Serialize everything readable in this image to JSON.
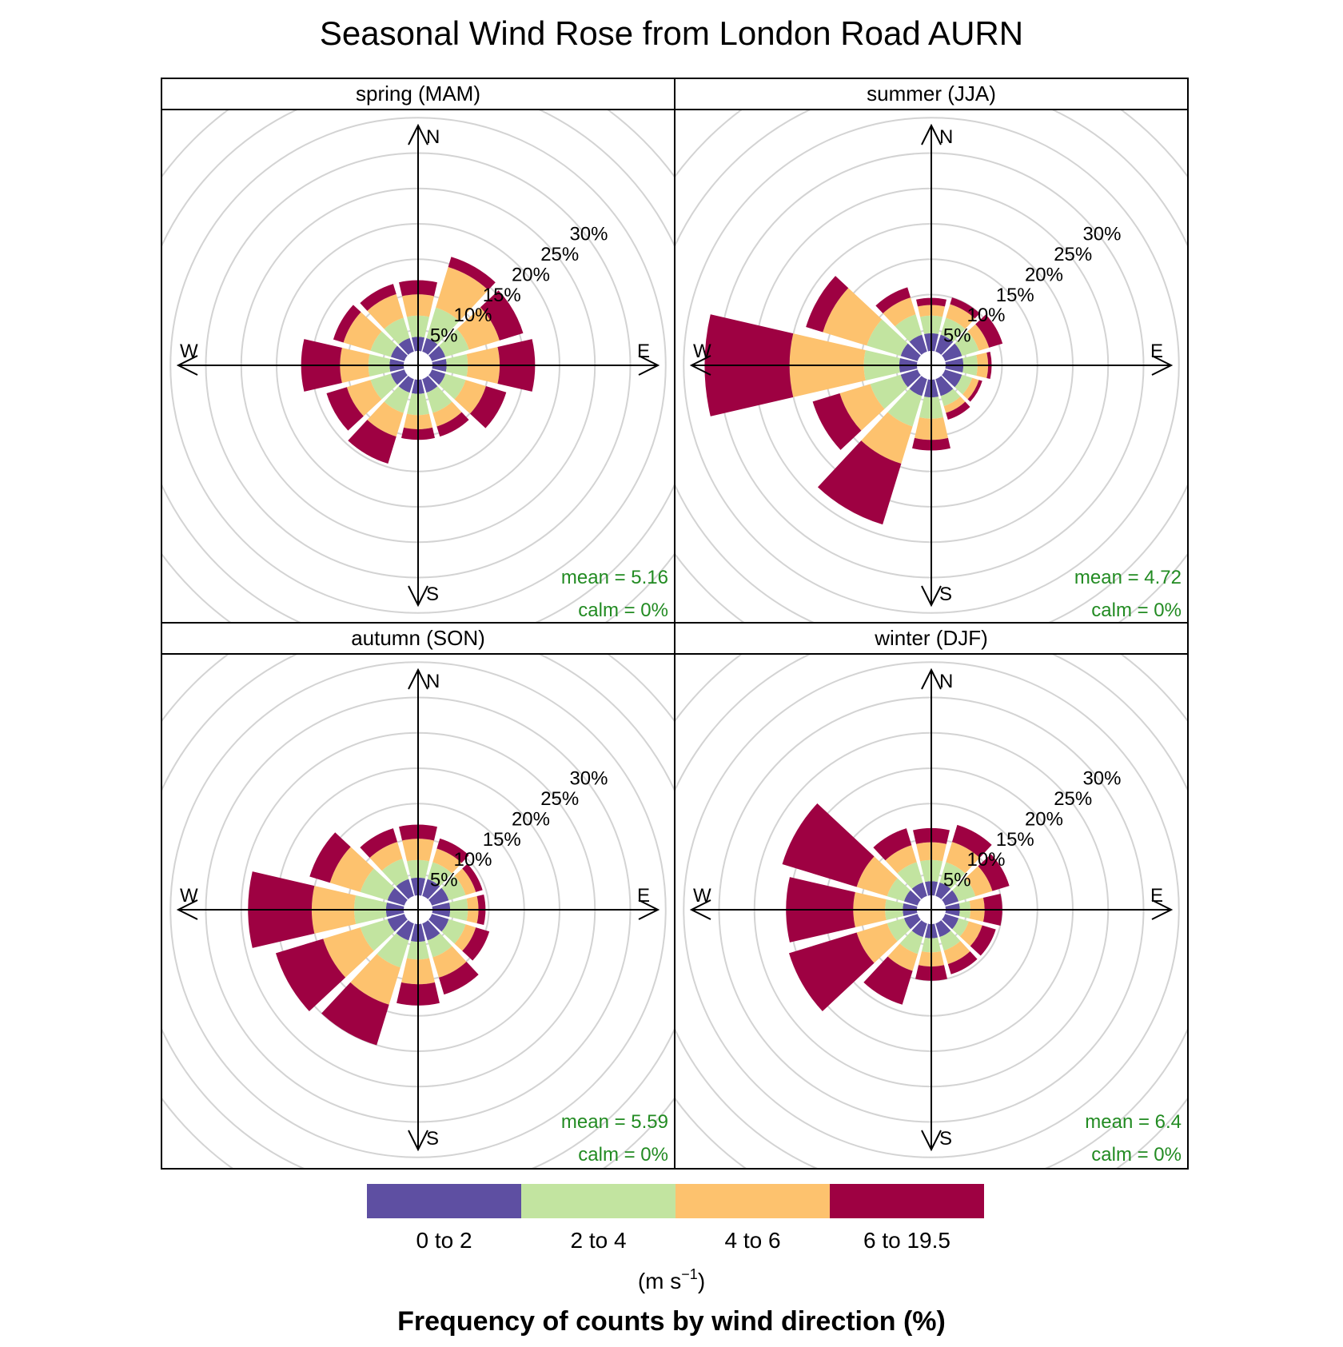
{
  "title": "Seasonal Wind Rose from London Road AURN",
  "compass": {
    "n": "N",
    "e": "E",
    "s": "S",
    "w": "W"
  },
  "ring_labels": [
    "5%",
    "10%",
    "15%",
    "20%",
    "25%",
    "30%"
  ],
  "legend": {
    "labels": [
      "0 to 2",
      "2 to 4",
      "4 to 6",
      "6 to 19.5"
    ],
    "colors": [
      "#5E4FA2",
      "#C2E4A0",
      "#FDC26E",
      "#9E0142"
    ],
    "units_main": "(m s",
    "units_sup": "−1",
    "units_close": ")",
    "caption": "Frequency of counts by wind direction (%)"
  },
  "chart_data": {
    "type": "wind_rose",
    "directions_deg": [
      0,
      30,
      60,
      90,
      120,
      150,
      180,
      210,
      240,
      270,
      300,
      330
    ],
    "radial_unit": "%",
    "radial_ticks": [
      5,
      10,
      15,
      20,
      25,
      30
    ],
    "speed_bins": [
      "0 to 2",
      "2 to 4",
      "4 to 6",
      "6 to 19.5"
    ],
    "grid": true,
    "panels": [
      {
        "name": "spring (MAM)",
        "mean": "mean = 5.16",
        "calm": "calm = 0%",
        "cumulative": [
          [
            2.0,
            5.0,
            8.0,
            10.0
          ],
          [
            2.0,
            6.5,
            12.5,
            14.0
          ],
          [
            2.0,
            5.5,
            10.0,
            13.5
          ],
          [
            2.0,
            5.0,
            9.5,
            14.5
          ],
          [
            2.0,
            5.0,
            8.0,
            11.0
          ],
          [
            2.0,
            5.0,
            7.0,
            8.5
          ],
          [
            2.0,
            5.0,
            7.0,
            8.5
          ],
          [
            2.0,
            5.0,
            8.5,
            12.5
          ],
          [
            2.0,
            5.0,
            8.5,
            11.5
          ],
          [
            2.0,
            5.0,
            9.0,
            14.5
          ],
          [
            2.0,
            5.0,
            9.0,
            10.5
          ],
          [
            2.0,
            5.0,
            8.5,
            10.0
          ]
        ]
      },
      {
        "name": "summer (JJA)",
        "mean": "mean = 4.72",
        "calm": "calm = 0%",
        "cumulative": [
          [
            2.5,
            5.0,
            6.5,
            7.5
          ],
          [
            2.5,
            5.0,
            7.0,
            8.0
          ],
          [
            2.5,
            5.0,
            6.5,
            8.5
          ],
          [
            2.5,
            4.5,
            6.0,
            6.5
          ],
          [
            2.5,
            4.0,
            5.0,
            5.5
          ],
          [
            2.5,
            4.0,
            5.0,
            6.0
          ],
          [
            2.5,
            5.5,
            8.5,
            10.0
          ],
          [
            2.5,
            7.0,
            12.5,
            21.5
          ],
          [
            2.5,
            7.0,
            11.5,
            15.5
          ],
          [
            2.5,
            7.5,
            18.0,
            30.0
          ],
          [
            2.5,
            7.5,
            14.0,
            16.5
          ],
          [
            2.5,
            5.5,
            8.0,
            9.5
          ]
        ]
      },
      {
        "name": "autumn (SON)",
        "mean": "mean = 5.59",
        "calm": "calm = 0%",
        "cumulative": [
          [
            2.5,
            5.0,
            8.0,
            10.0
          ],
          [
            2.5,
            5.0,
            7.0,
            8.5
          ],
          [
            2.5,
            5.0,
            6.5,
            7.5
          ],
          [
            2.5,
            5.0,
            6.5,
            7.5
          ],
          [
            2.5,
            5.0,
            6.5,
            8.5
          ],
          [
            2.5,
            5.0,
            8.0,
            10.5
          ],
          [
            2.5,
            5.0,
            8.5,
            11.5
          ],
          [
            2.5,
            6.5,
            12.0,
            18.0
          ],
          [
            2.5,
            6.5,
            12.0,
            19.0
          ],
          [
            2.5,
            7.0,
            13.0,
            22.0
          ],
          [
            2.5,
            6.5,
            11.0,
            14.0
          ],
          [
            2.5,
            5.5,
            8.0,
            10.0
          ]
        ]
      },
      {
        "name": "winter (DJF)",
        "mean": "mean = 6.4",
        "calm": "calm = 0%",
        "cumulative": [
          [
            2.0,
            5.0,
            7.5,
            9.5
          ],
          [
            2.0,
            5.0,
            8.0,
            10.5
          ],
          [
            2.0,
            4.5,
            7.0,
            9.5
          ],
          [
            2.0,
            3.5,
            5.5,
            8.0
          ],
          [
            2.0,
            3.5,
            5.5,
            7.5
          ],
          [
            2.0,
            4.0,
            6.0,
            7.5
          ],
          [
            2.0,
            4.0,
            6.0,
            8.0
          ],
          [
            2.0,
            4.5,
            7.0,
            12.0
          ],
          [
            2.0,
            4.5,
            9.0,
            19.0
          ],
          [
            2.0,
            4.5,
            9.0,
            18.5
          ],
          [
            2.0,
            4.5,
            9.0,
            20.0
          ],
          [
            2.0,
            5.0,
            7.5,
            10.0
          ]
        ]
      }
    ]
  }
}
